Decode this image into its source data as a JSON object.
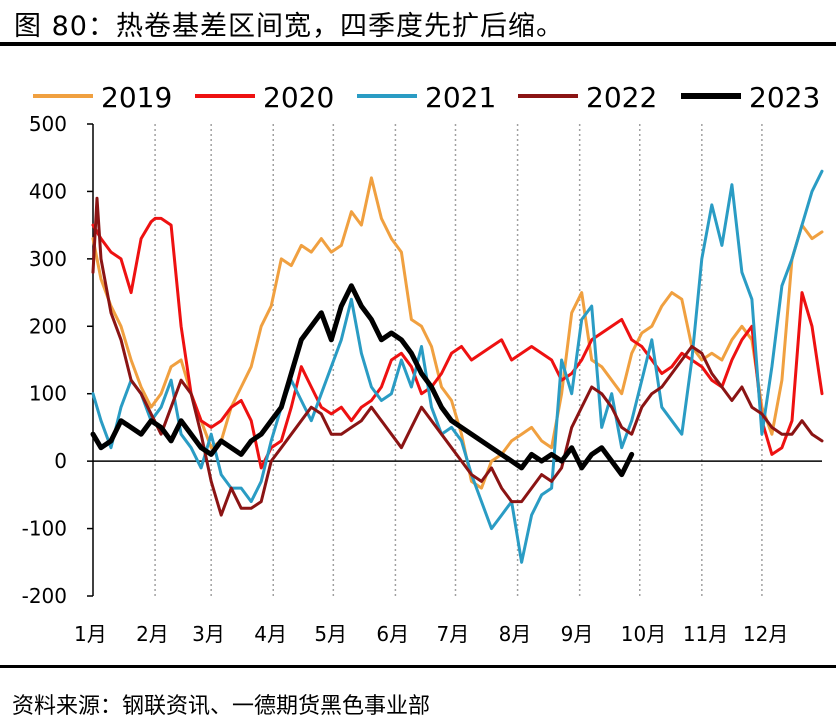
{
  "figure": {
    "title": "图 80：热卷基差区间宽，四季度先扩后缩。",
    "source": "资料来源：钢联资讯、一德期货黑色事业部"
  },
  "chart_data": {
    "type": "line",
    "title": "热卷基差区间宽，四季度先扩后缩",
    "xlabel": "",
    "ylabel": "",
    "x_unit": "day of year",
    "xlim": [
      1,
      365
    ],
    "ylim": [
      -200,
      500
    ],
    "yticks": [
      -200,
      -100,
      0,
      100,
      200,
      300,
      400,
      500
    ],
    "month_ticks": [
      {
        "label": "1月",
        "day": 1
      },
      {
        "label": "2月",
        "day": 32
      },
      {
        "label": "3月",
        "day": 60
      },
      {
        "label": "4月",
        "day": 91
      },
      {
        "label": "5月",
        "day": 121
      },
      {
        "label": "6月",
        "day": 152
      },
      {
        "label": "7月",
        "day": 182
      },
      {
        "label": "8月",
        "day": 213
      },
      {
        "label": "9月",
        "day": 244
      },
      {
        "label": "10月",
        "day": 274
      },
      {
        "label": "11月",
        "day": 305
      },
      {
        "label": "12月",
        "day": 335
      }
    ],
    "gridlines": "vertical-dotted",
    "legend_position": "top",
    "series": [
      {
        "name": "2019",
        "color": "#F0A040",
        "width": 3,
        "x": [
          1,
          5,
          10,
          15,
          20,
          25,
          30,
          35,
          40,
          45,
          50,
          55,
          60,
          65,
          70,
          75,
          80,
          85,
          90,
          95,
          100,
          105,
          110,
          115,
          120,
          125,
          130,
          135,
          140,
          145,
          150,
          155,
          160,
          165,
          170,
          175,
          180,
          185,
          190,
          195,
          200,
          205,
          210,
          215,
          220,
          225,
          230,
          235,
          240,
          245,
          250,
          255,
          260,
          265,
          270,
          275,
          280,
          285,
          290,
          295,
          300,
          305,
          310,
          315,
          320,
          325,
          330,
          335,
          340,
          345,
          350,
          355,
          360,
          365
        ],
        "y": [
          330,
          270,
          230,
          200,
          150,
          110,
          80,
          100,
          140,
          150,
          100,
          60,
          20,
          30,
          80,
          110,
          140,
          200,
          230,
          300,
          290,
          320,
          310,
          330,
          310,
          320,
          370,
          350,
          420,
          360,
          330,
          310,
          210,
          200,
          170,
          110,
          90,
          40,
          -30,
          -40,
          0,
          10,
          30,
          40,
          50,
          30,
          20,
          100,
          220,
          250,
          150,
          140,
          120,
          100,
          160,
          190,
          200,
          230,
          250,
          240,
          170,
          150,
          160,
          150,
          180,
          200,
          180,
          80,
          40,
          120,
          300,
          350,
          330,
          340
        ]
      },
      {
        "name": "2020",
        "color": "#EE1111",
        "width": 3,
        "x": [
          1,
          5,
          10,
          15,
          20,
          25,
          30,
          32,
          35,
          40,
          45,
          50,
          55,
          60,
          65,
          70,
          75,
          80,
          85,
          90,
          95,
          100,
          105,
          110,
          115,
          120,
          125,
          130,
          135,
          140,
          145,
          150,
          155,
          160,
          165,
          170,
          175,
          180,
          185,
          190,
          195,
          200,
          205,
          210,
          215,
          220,
          225,
          230,
          235,
          240,
          245,
          250,
          255,
          260,
          265,
          270,
          275,
          280,
          285,
          290,
          295,
          300,
          305,
          310,
          315,
          320,
          325,
          330,
          335,
          340,
          345,
          350,
          355,
          360,
          365
        ],
        "y": [
          350,
          330,
          310,
          300,
          250,
          330,
          355,
          360,
          360,
          350,
          200,
          100,
          60,
          50,
          60,
          80,
          90,
          60,
          -10,
          20,
          30,
          80,
          140,
          110,
          80,
          70,
          80,
          60,
          80,
          90,
          110,
          150,
          160,
          140,
          100,
          110,
          130,
          160,
          170,
          150,
          160,
          170,
          180,
          150,
          160,
          170,
          160,
          150,
          120,
          130,
          150,
          180,
          190,
          200,
          210,
          180,
          170,
          150,
          130,
          140,
          160,
          150,
          140,
          120,
          110,
          150,
          180,
          200,
          60,
          10,
          20,
          60,
          250,
          200,
          100
        ]
      },
      {
        "name": "2021",
        "color": "#2A9CC4",
        "width": 3,
        "x": [
          1,
          5,
          10,
          15,
          20,
          25,
          30,
          35,
          40,
          45,
          50,
          55,
          60,
          65,
          70,
          75,
          80,
          85,
          90,
          95,
          100,
          105,
          110,
          115,
          120,
          125,
          130,
          135,
          140,
          145,
          150,
          155,
          160,
          165,
          170,
          175,
          180,
          185,
          190,
          195,
          200,
          205,
          210,
          215,
          220,
          225,
          230,
          235,
          240,
          245,
          250,
          255,
          260,
          265,
          270,
          275,
          280,
          285,
          290,
          295,
          300,
          305,
          310,
          315,
          320,
          325,
          330,
          335,
          340,
          345,
          350,
          355,
          360,
          365
        ],
        "y": [
          100,
          60,
          20,
          80,
          120,
          100,
          60,
          80,
          120,
          40,
          20,
          -10,
          40,
          -20,
          -40,
          -40,
          -60,
          -30,
          30,
          80,
          120,
          90,
          60,
          100,
          140,
          180,
          240,
          160,
          110,
          90,
          100,
          150,
          110,
          170,
          80,
          40,
          50,
          30,
          -20,
          -60,
          -100,
          -80,
          -60,
          -150,
          -80,
          -50,
          -40,
          150,
          100,
          210,
          230,
          50,
          100,
          20,
          60,
          120,
          180,
          80,
          60,
          40,
          150,
          300,
          380,
          320,
          410,
          280,
          240,
          40,
          140,
          260,
          300,
          350,
          400,
          430
        ]
      },
      {
        "name": "2022",
        "color": "#8B1414",
        "width": 3,
        "x": [
          1,
          3,
          5,
          10,
          15,
          20,
          25,
          30,
          35,
          40,
          45,
          50,
          55,
          60,
          65,
          70,
          75,
          80,
          85,
          90,
          95,
          100,
          105,
          110,
          115,
          120,
          125,
          130,
          135,
          140,
          145,
          150,
          155,
          160,
          165,
          170,
          175,
          180,
          185,
          190,
          195,
          200,
          205,
          210,
          215,
          220,
          225,
          230,
          235,
          240,
          245,
          250,
          255,
          260,
          265,
          270,
          275,
          280,
          285,
          290,
          295,
          300,
          305,
          310,
          315,
          320,
          325,
          330,
          335,
          340,
          345,
          350,
          355,
          360,
          365
        ],
        "y": [
          280,
          390,
          300,
          220,
          180,
          120,
          100,
          70,
          40,
          80,
          120,
          100,
          40,
          -30,
          -80,
          -40,
          -70,
          -70,
          -60,
          0,
          20,
          40,
          60,
          80,
          70,
          40,
          40,
          50,
          60,
          80,
          60,
          40,
          20,
          50,
          80,
          60,
          40,
          20,
          0,
          -20,
          -30,
          -10,
          -40,
          -60,
          -60,
          -40,
          -20,
          -30,
          -10,
          50,
          80,
          110,
          100,
          80,
          50,
          40,
          80,
          100,
          110,
          130,
          150,
          170,
          160,
          130,
          110,
          90,
          110,
          80,
          70,
          50,
          40,
          40,
          60,
          40,
          30
        ]
      },
      {
        "name": "2023",
        "color": "#000000",
        "width": 5,
        "x": [
          1,
          5,
          10,
          15,
          20,
          25,
          30,
          35,
          40,
          45,
          50,
          55,
          60,
          65,
          70,
          75,
          80,
          85,
          90,
          95,
          100,
          105,
          110,
          115,
          120,
          125,
          130,
          135,
          140,
          145,
          150,
          155,
          160,
          165,
          170,
          175,
          180,
          185,
          190,
          195,
          200,
          205,
          210,
          215,
          220,
          225,
          230,
          235,
          240,
          245,
          250,
          255,
          260,
          265,
          270
        ],
        "y": [
          40,
          20,
          30,
          60,
          50,
          40,
          60,
          50,
          30,
          60,
          40,
          20,
          10,
          30,
          20,
          10,
          30,
          40,
          60,
          80,
          130,
          180,
          200,
          220,
          180,
          230,
          260,
          230,
          210,
          180,
          190,
          180,
          160,
          130,
          110,
          80,
          60,
          50,
          40,
          30,
          20,
          10,
          0,
          -10,
          10,
          0,
          10,
          0,
          20,
          -10,
          10,
          20,
          0,
          -20,
          10
        ]
      }
    ]
  }
}
